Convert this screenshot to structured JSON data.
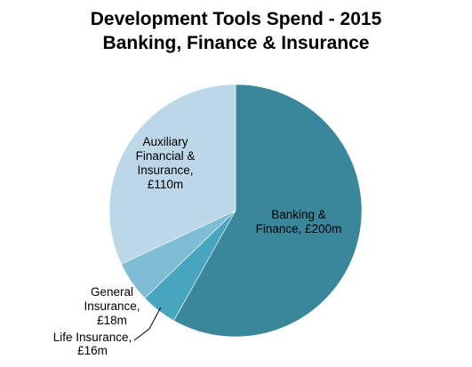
{
  "chart_data": {
    "type": "pie",
    "title": [
      "Development Tools Spend - 2015",
      "Banking, Finance & Insurance"
    ],
    "unit": "£m",
    "slices": [
      {
        "label": [
          "Banking &",
          "Finance, £200m"
        ],
        "value": 200,
        "color": "#3a879c"
      },
      {
        "label": [
          "Life Insurance,",
          "£16m"
        ],
        "value": 16,
        "color": "#47a6be"
      },
      {
        "label": [
          "General",
          "Insurance,",
          "£18m"
        ],
        "value": 18,
        "color": "#7fbdd5"
      },
      {
        "label": [
          "Auxiliary",
          "Financial &",
          "Insurance,",
          "£110m"
        ],
        "value": 110,
        "color": "#bcd7e7"
      }
    ],
    "start": "12 o'clock",
    "direction": "clockwise",
    "legend": "none"
  }
}
